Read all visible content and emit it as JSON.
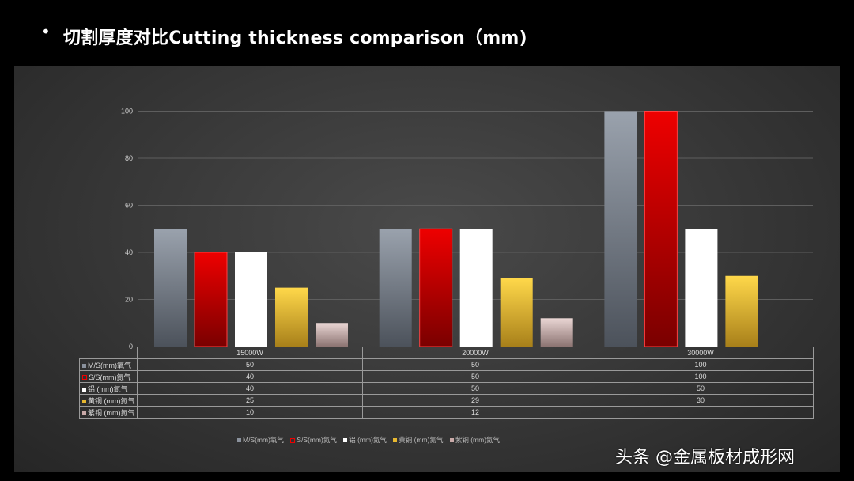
{
  "header": {
    "bullet": "•",
    "title": "切割厚度对比Cutting thickness comparison（mm)"
  },
  "chart_data": {
    "type": "bar",
    "categories": [
      "15000W",
      "20000W",
      "30000W"
    ],
    "series": [
      {
        "name": "M/S(mm)氧气",
        "values": [
          50,
          50,
          100
        ],
        "color": "#8a919c"
      },
      {
        "name": "S/S(mm)氮气",
        "values": [
          40,
          50,
          100
        ],
        "color": "#d40000"
      },
      {
        "name": "铝 (mm)氮气",
        "values": [
          40,
          50,
          50
        ],
        "color": "#ffffff"
      },
      {
        "name": "黄铜  (mm)氮气",
        "values": [
          25,
          29,
          30
        ],
        "color": "#e8b830"
      },
      {
        "name": "紫铜  (mm)氮气",
        "values": [
          10,
          12,
          null
        ],
        "color": "#c9aaa8"
      }
    ],
    "table_values": [
      [
        "50",
        "50",
        "100"
      ],
      [
        "40",
        "50",
        "100"
      ],
      [
        "40",
        "50",
        "50"
      ],
      [
        "25",
        "29",
        "30"
      ],
      [
        "10",
        "12",
        ""
      ]
    ],
    "y_ticks": [
      0,
      20,
      40,
      60,
      80,
      100
    ],
    "ylim": [
      0,
      120
    ],
    "grid": true,
    "legend_position": "bottom"
  },
  "watermark": "头条 @金属板材成形网"
}
